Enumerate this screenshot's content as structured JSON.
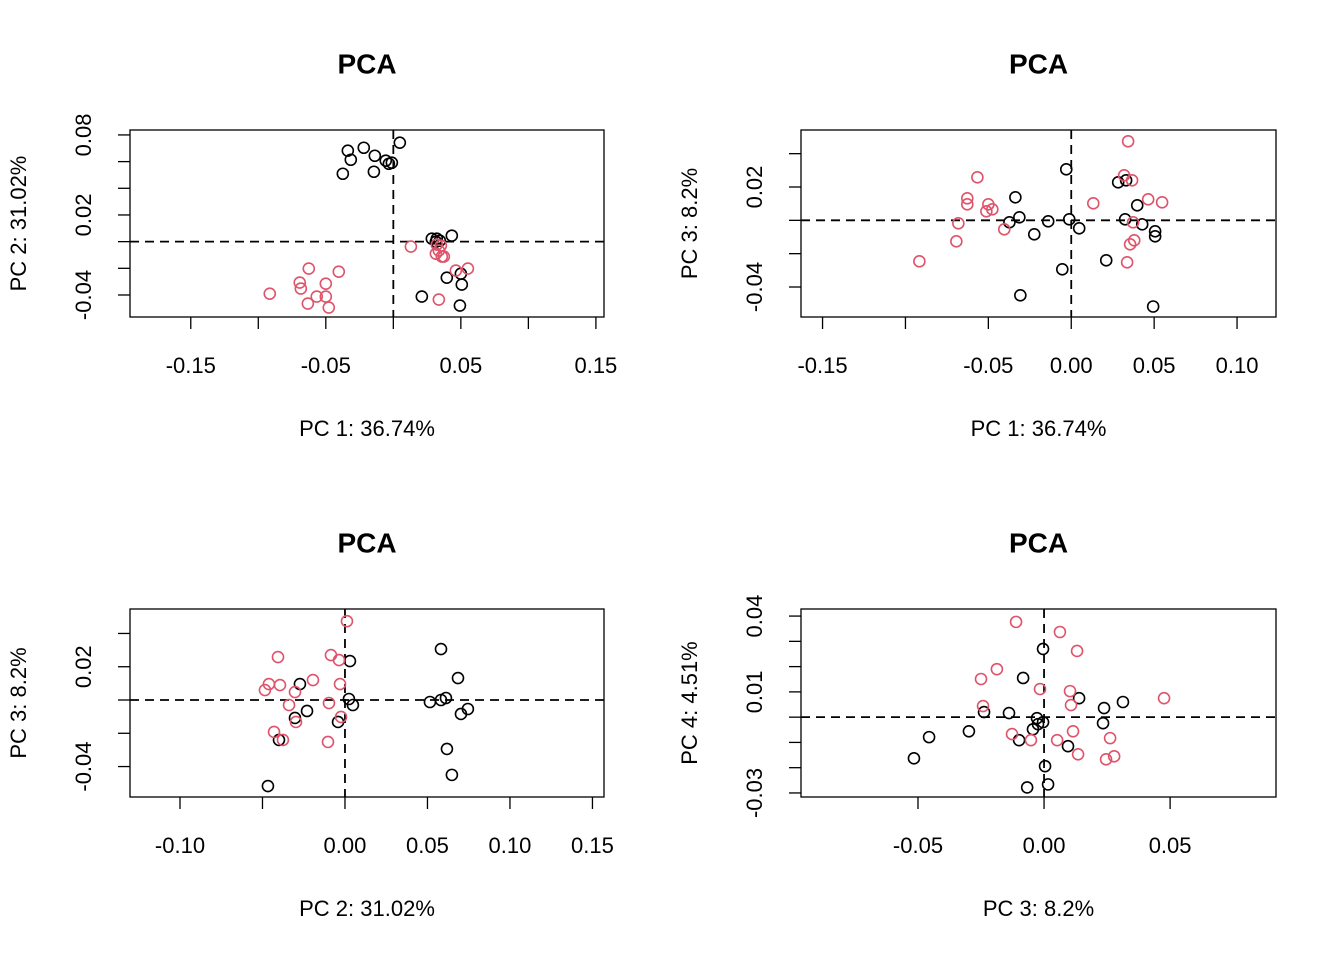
{
  "chart_data": [
    {
      "type": "scatter",
      "title": "PCA",
      "xlabel": "PC 1: 36.74%",
      "ylabel": "PC 2: 31.02%",
      "xlim": [
        -0.195,
        0.156
      ],
      "ylim": [
        -0.0565,
        0.0837
      ],
      "xticks": [
        -0.15,
        {
          "value": -0.1,
          "label": null
        },
        -0.05,
        {
          "value": 0,
          "label": null
        },
        0.05,
        {
          "value": 0.1,
          "label": null
        },
        0.15
      ],
      "yticks": [
        -0.04,
        {
          "value": -0.02,
          "label": null
        },
        {
          "value": 0,
          "label": null
        },
        0.02,
        {
          "value": 0.04,
          "label": null
        },
        {
          "value": 0.06,
          "label": null
        },
        0.08
      ],
      "hline": 0,
      "vline": 0,
      "series": [
        {
          "color": "#000000",
          "x": [
            0.0048,
            -0.0219,
            -0.0337,
            -0.0315,
            -0.0137,
            -0.0056,
            -0.0011,
            -0.0033,
            -0.0144,
            -0.0374,
            0.0285,
            0.0322,
            0.0433,
            0.0344,
            0.0315,
            0.0396,
            0.05,
            0.0507,
            0.0211,
            0.0493
          ],
          "values": [
            0.0742,
            0.0704,
            0.0682,
            0.0614,
            0.0644,
            0.0607,
            0.0592,
            0.0584,
            0.0524,
            0.0509,
            0.0022,
            0.0022,
            0.0045,
            0.0007,
            0.0,
            -0.027,
            -0.024,
            -0.0322,
            -0.0412,
            -0.0479
          ]
        },
        {
          "color": "#DF536B",
          "x": [
            0.013,
            0.0322,
            0.0352,
            0.0337,
            0.0315,
            0.0359,
            0.0374,
            0.0463,
            0.0552,
            0.0337,
            -0.0626,
            -0.0404,
            -0.0693,
            -0.05,
            -0.0685,
            -0.0567,
            -0.05,
            -0.0633,
            -0.0478,
            -0.0915
          ],
          "values": [
            -0.0037,
            -0.0022,
            -0.003,
            -0.0067,
            -0.009,
            -0.0112,
            -0.0112,
            -0.0217,
            -0.0202,
            -0.0434,
            -0.0202,
            -0.0225,
            -0.0307,
            -0.0315,
            -0.0352,
            -0.0412,
            -0.0412,
            -0.0464,
            -0.0494,
            -0.039
          ]
        }
      ]
    },
    {
      "type": "scatter",
      "title": "PCA",
      "xlabel": "PC 1: 36.74%",
      "ylabel": "PC 3: 8.2%",
      "xlim": [
        -0.163,
        0.1235
      ],
      "ylim": [
        -0.058,
        0.0542
      ],
      "xticks": [
        -0.15,
        {
          "value": -0.1,
          "label": null
        },
        -0.05,
        {
          "value": 0,
          "label": "0.00"
        },
        0.05,
        {
          "value": 0.1,
          "label": "0.10"
        }
      ],
      "yticks": [
        -0.04,
        {
          "value": -0.02,
          "label": null
        },
        {
          "value": 0,
          "label": null
        },
        0.02,
        {
          "value": 0.04,
          "label": null
        }
      ],
      "hline": 0,
      "vline": 0,
      "series": [
        {
          "color": "#000000",
          "x": [
            -0.003,
            0.0283,
            0.0331,
            0.0398,
            -0.0337,
            -0.0313,
            -0.0373,
            -0.0139,
            -0.0012,
            0.0048,
            -0.0223,
            0.0325,
            0.0428,
            0.0506,
            0.0506,
            0.0211,
            -0.0054,
            -0.0307,
            0.0494
          ],
          "values": [
            0.0306,
            0.0228,
            0.024,
            0.009,
            0.0138,
            0.0018,
            -0.0012,
            -0.0006,
            0.0006,
            -0.0048,
            -0.0084,
            0.0006,
            -0.0024,
            -0.0066,
            -0.0096,
            -0.024,
            -0.0294,
            -0.045,
            -0.0517
          ]
        },
        {
          "color": "#DF536B",
          "x": [
            0.0343,
            0.0319,
            0.0367,
            -0.0566,
            -0.0627,
            -0.0627,
            -0.05,
            -0.0476,
            -0.0512,
            -0.0681,
            -0.0693,
            -0.0404,
            -0.0916,
            0.0133,
            0.0464,
            0.0548,
            0.0373,
            0.038,
            0.0355,
            0.0337
          ],
          "values": [
            0.0474,
            0.027,
            0.024,
            0.0258,
            0.0132,
            0.0096,
            0.0096,
            0.0066,
            0.0054,
            -0.0018,
            -0.0126,
            -0.0054,
            -0.0246,
            0.0102,
            0.0126,
            0.0108,
            -0.0012,
            -0.012,
            -0.0144,
            -0.0252
          ]
        }
      ]
    },
    {
      "type": "scatter",
      "title": "PCA",
      "xlabel": "PC 2: 31.02%",
      "ylabel": "PC 3: 8.2%",
      "xlim": [
        -0.1303,
        0.157
      ],
      "ylim": [
        -0.0583,
        0.0547
      ],
      "xticks": [
        {
          "value": -0.1,
          "label": "-0.10"
        },
        {
          "value": -0.05,
          "label": null
        },
        {
          "value": 0,
          "label": "0.00"
        },
        0.05,
        {
          "value": 0.1,
          "label": "0.10"
        },
        0.15
      ],
      "yticks": [
        -0.04,
        {
          "value": -0.02,
          "label": null
        },
        {
          "value": 0,
          "label": null
        },
        0.02,
        {
          "value": 0.04,
          "label": null
        }
      ],
      "hline": 0,
      "vline": 0,
      "series": [
        {
          "color": "#000000",
          "x": [
            0.0582,
            0.0685,
            0.0703,
            0.0745,
            0.0612,
            0.0515,
            0.0582,
            0.0618,
            0.0648,
            0.003,
            0.0024,
            0.0048,
            -0.0273,
            -0.023,
            -0.0303,
            -0.0042,
            -0.04,
            -0.0467
          ],
          "values": [
            0.0306,
            0.0132,
            -0.0084,
            -0.0054,
            0.0012,
            -0.0012,
            0.0,
            -0.0294,
            -0.045,
            0.0234,
            0.0006,
            -0.003,
            0.0096,
            -0.0066,
            -0.0108,
            -0.0132,
            -0.024,
            -0.0517
          ]
        },
        {
          "color": "#DF536B",
          "x": [
            0.0012,
            -0.0085,
            -0.0036,
            -0.0406,
            -0.0461,
            -0.0394,
            -0.0485,
            -0.0303,
            -0.0194,
            -0.0339,
            -0.0097,
            -0.003,
            -0.0024,
            -0.0297,
            -0.043,
            -0.0376,
            -0.0103
          ],
          "values": [
            0.0474,
            0.027,
            0.024,
            0.0258,
            0.0096,
            0.009,
            0.006,
            0.0048,
            0.012,
            -0.003,
            -0.0018,
            0.0096,
            -0.0102,
            -0.0132,
            -0.0192,
            -0.024,
            -0.0252
          ]
        }
      ]
    },
    {
      "type": "scatter",
      "title": "PCA",
      "xlabel": "PC 3: 8.2%",
      "ylabel": "PC 4: 4.51%",
      "xlim": [
        -0.0964,
        0.092
      ],
      "ylim": [
        -0.0316,
        0.0428
      ],
      "xticks": [
        -0.05,
        {
          "value": 0,
          "label": "0.00"
        },
        0.05
      ],
      "yticks": [
        -0.03,
        {
          "value": -0.02,
          "label": null
        },
        {
          "value": -0.01,
          "label": null
        },
        {
          "value": 0,
          "label": null
        },
        0.01,
        {
          "value": 0.02,
          "label": null
        },
        {
          "value": 0.03,
          "label": null
        },
        0.04
      ],
      "hline": 0,
      "vline": 0,
      "series": [
        {
          "color": "#000000",
          "x": [
            -0.0004,
            -0.0083,
            0.0139,
            0.0313,
            0.0238,
            0.0234,
            -0.0139,
            -0.0238,
            -0.0028,
            -0.0004,
            -0.0024,
            -0.0044,
            -0.0298,
            -0.0099,
            0.0095,
            -0.0456,
            -0.0516,
            0.0004,
            0.0016,
            -0.0067
          ],
          "values": [
            0.027,
            0.0155,
            0.0075,
            0.006,
            0.0036,
            -0.0024,
            0.0016,
            0.002,
            -0.0004,
            -0.002,
            -0.0028,
            -0.0048,
            -0.0056,
            -0.0091,
            -0.0115,
            -0.0079,
            -0.0163,
            -0.0194,
            -0.0266,
            -0.0278
          ]
        },
        {
          "color": "#DF536B",
          "x": [
            -0.0111,
            0.0063,
            0.0131,
            -0.0187,
            -0.025,
            -0.0016,
            0.0103,
            0.0476,
            -0.0242,
            0.0107,
            -0.0127,
            -0.0052,
            0.0052,
            0.0115,
            0.0135,
            0.0262,
            0.0246,
            0.0278
          ],
          "values": [
            0.0377,
            0.0337,
            0.0262,
            0.019,
            0.0151,
            0.0111,
            0.0103,
            0.0075,
            0.0044,
            0.0048,
            -0.0067,
            -0.0091,
            -0.0091,
            -0.0056,
            -0.0147,
            -0.0083,
            -0.0167,
            -0.0155
          ]
        }
      ]
    }
  ]
}
